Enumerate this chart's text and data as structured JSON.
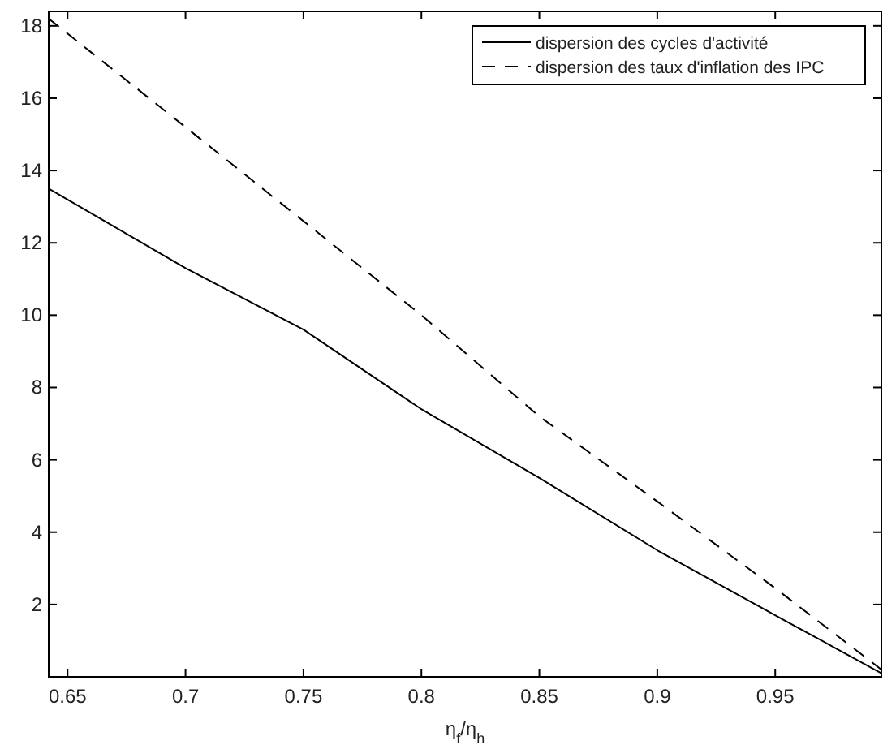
{
  "chart_data": {
    "type": "line",
    "xlabel": "η$_{f}$/η$_{h}$",
    "xlim": [
      0.642,
      0.995
    ],
    "ylim": [
      0,
      18.4
    ],
    "xticks": [
      0.65,
      0.7,
      0.75,
      0.8,
      0.85,
      0.9,
      0.95
    ],
    "yticks": [
      2,
      4,
      6,
      8,
      10,
      12,
      14,
      16,
      18
    ],
    "grid": false,
    "legend": "top right",
    "marker": "none",
    "x": [
      0.642,
      0.7,
      0.75,
      0.8,
      0.85,
      0.9,
      0.95,
      0.995
    ],
    "series": [
      {
        "name": "dispersion des cycles d'activité",
        "color": "#000000",
        "line_style": "solid",
        "values": [
          13.5,
          11.3,
          9.6,
          7.4,
          5.5,
          3.5,
          1.7,
          0.1
        ]
      },
      {
        "name": "dispersion des taux d'inflation des IPC",
        "color": "#000000",
        "line_style": "dashed",
        "values": [
          18.2,
          15.2,
          12.6,
          10.0,
          7.2,
          4.85,
          2.45,
          0.2
        ]
      }
    ]
  }
}
